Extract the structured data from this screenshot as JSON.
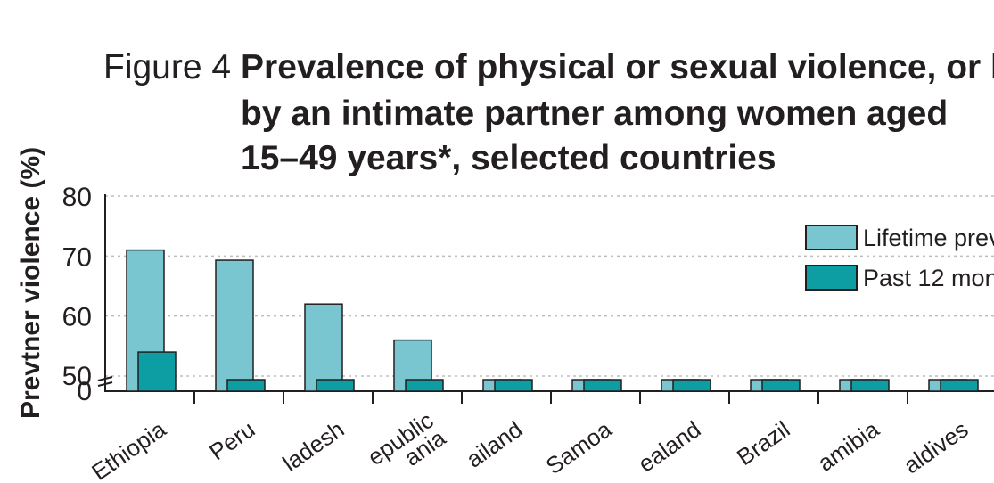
{
  "figure": {
    "label": "Figure 4",
    "title_lines": [
      "Prevalence of physical or sexual violence, or bo",
      "by an intimate partner among women aged",
      "15–49 years*, selected countries"
    ]
  },
  "chart_data": {
    "type": "bar",
    "ylabel": "Prevtner violence (%)",
    "y_ticks": [
      "0",
      "50",
      "60",
      "70",
      "80"
    ],
    "y_axis": {
      "broken": true,
      "upper_range": [
        50,
        80
      ],
      "baseline": 0
    },
    "grid": true,
    "legend_position": "top-right",
    "categories": [
      "Ethiopia",
      "Peru",
      "ladesh",
      "epublic\nania",
      "ailand",
      "Samoa",
      "ealand",
      "Brazil",
      "amibia",
      "aldives"
    ],
    "series": [
      {
        "name": "Lifetime prev",
        "values": [
          71,
          69.3,
          62,
          56,
          null,
          null,
          null,
          null,
          null,
          null
        ]
      },
      {
        "name": "Past 12 mon",
        "values": [
          54,
          null,
          null,
          null,
          null,
          null,
          null,
          null,
          null,
          null
        ]
      }
    ],
    "colors": {
      "lifetime": "#79c6d1",
      "past12": "#0c9ea3",
      "bar_stroke": "#231f20",
      "grid": "#bcbec0"
    }
  }
}
